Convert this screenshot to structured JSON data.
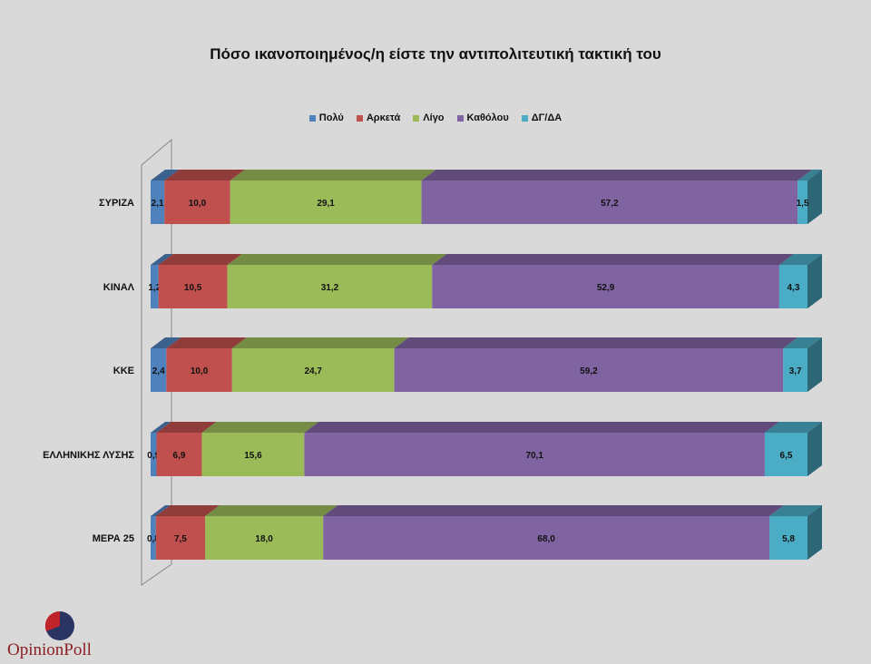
{
  "chart_data": {
    "type": "bar",
    "orientation": "horizontal",
    "stacked": true,
    "title": "Πόσο ικανοποιημένος/η είστε την αντιπολιτευτική τακτική του",
    "categories": [
      "ΣΥΡΙΖΑ",
      "ΚΙΝΑΛ",
      "ΚΚΕ",
      "ΕΛΛΗΝΙΚΗΣ ΛΥΣΗΣ",
      "ΜΕΡΑ 25"
    ],
    "series": [
      {
        "name": "Πολύ",
        "color": "#4f81bd",
        "values": [
          2.1,
          1.2,
          2.4,
          0.9,
          0.8
        ],
        "labels": [
          "2,1",
          "1,2",
          "2,4",
          "0,9",
          "0,8"
        ]
      },
      {
        "name": "Αρκετά",
        "color": "#c0504d",
        "values": [
          10.0,
          10.5,
          10.0,
          6.9,
          7.5
        ],
        "labels": [
          "10,0",
          "10,5",
          "10,0",
          "6,9",
          "7,5"
        ]
      },
      {
        "name": "Λίγο",
        "color": "#9bbb59",
        "values": [
          29.1,
          31.2,
          24.7,
          15.6,
          18.0
        ],
        "labels": [
          "29,1",
          "31,2",
          "24,7",
          "15,6",
          "18,0"
        ]
      },
      {
        "name": "Καθόλου",
        "color": "#8064a2",
        "values": [
          57.2,
          52.9,
          59.2,
          70.1,
          68.0
        ],
        "labels": [
          "57,2",
          "52,9",
          "59,2",
          "70,1",
          "68,0"
        ]
      },
      {
        "name": "ΔΓ/ΔΑ",
        "color": "#4bacc6",
        "values": [
          1.5,
          4.3,
          3.7,
          6.5,
          5.8
        ],
        "labels": [
          "1,5",
          "4,3",
          "3,7",
          "6,5",
          "5,8"
        ]
      }
    ],
    "xlim": [
      0,
      100
    ],
    "legend": "top",
    "grid": false
  },
  "brand": {
    "name": "OpinionPoll",
    "logo_colors": [
      "#1f2a55",
      "#c0242b"
    ]
  }
}
